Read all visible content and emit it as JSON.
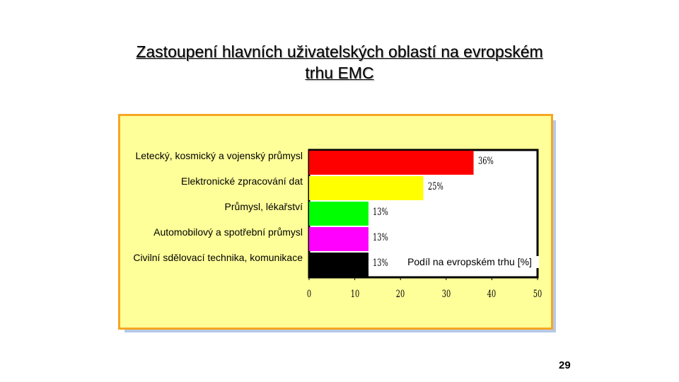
{
  "chart_data": {
    "type": "hbar",
    "title": "Zastoupení hlavních uživatelských oblastí na evropském trhu EMC",
    "categories": [
      "Letecký, kosmický a vojenský průmysl",
      "Elektronické zpracování dat",
      "Průmysl, lékařství",
      "Automobilový a spotřební průmysl",
      "Civilní sdělovací technika, komunikace"
    ],
    "values": [
      36,
      25,
      13,
      13,
      13
    ],
    "value_labels": [
      "36%",
      "25%",
      "13%",
      "13%",
      "13%"
    ],
    "colors": [
      "#ff0000",
      "#ffff00",
      "#00ff00",
      "#ff00ff",
      "#000000"
    ],
    "x_label": "Podíl na evropském trhu [%]",
    "xlim": [
      0,
      50
    ],
    "xticks": [
      0,
      10,
      20,
      30,
      40,
      50
    ]
  },
  "slide_number": "29"
}
